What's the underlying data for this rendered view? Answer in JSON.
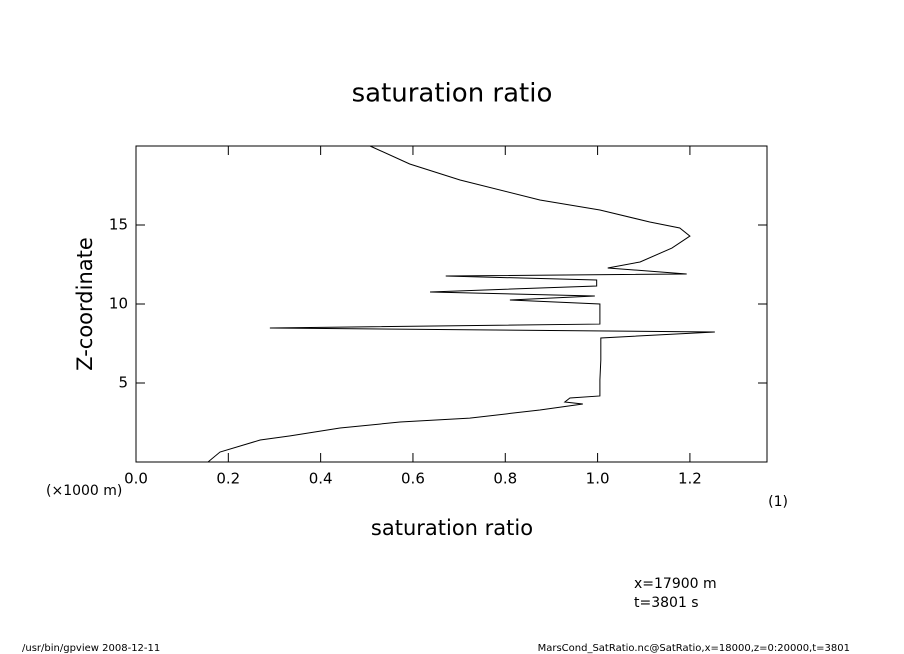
{
  "chart_data": {
    "type": "line",
    "title": "saturation ratio",
    "x_label": "saturation ratio",
    "y_label": "Z-coordinate",
    "y_unit": "(×1000 m)",
    "x_unit": "(1)",
    "annotations": [
      "x=17900  m",
      "t=3801  s"
    ],
    "footer_left": "/usr/bin/gpview   2008-12-11",
    "footer_right": "MarsCond_SatRatio.nc@SatRatio,x=18000,z=0:20000,t=3801",
    "xlim": [
      0,
      1.367
    ],
    "ylim": [
      0,
      20
    ],
    "xticks": [
      {
        "value": 0,
        "label": "0.0"
      },
      0.2,
      0.4,
      0.6,
      0.8,
      {
        "value": 1,
        "label": "1.0"
      },
      1.2
    ],
    "yticks": [
      5,
      10,
      15
    ],
    "series": [
      {
        "color": "#000000",
        "x": [
          0.156,
          0.182,
          0.269,
          0.334,
          0.442,
          0.572,
          0.723,
          0.875,
          0.968,
          0.929,
          0.94,
          1.005,
          1.005,
          1.007,
          1.007,
          1.254,
          0.29,
          1.005,
          1.005,
          0.81,
          0.994,
          0.637,
          0.998,
          0.998,
          0.671,
          1.193,
          1.022,
          1.092,
          1.161,
          1.2,
          1.178,
          1.113,
          1.005,
          0.875,
          0.702,
          0.593,
          0.507
        ],
        "values": [
          0,
          0.63,
          1.39,
          1.65,
          2.15,
          2.53,
          2.78,
          3.29,
          3.67,
          3.8,
          4.05,
          4.18,
          5.19,
          6.46,
          7.85,
          8.23,
          8.48,
          8.73,
          10.0,
          10.25,
          10.51,
          10.76,
          11.14,
          11.52,
          11.77,
          11.9,
          12.28,
          12.66,
          13.54,
          14.3,
          14.81,
          15.19,
          15.95,
          16.58,
          17.85,
          18.86,
          20.0
        ]
      }
    ]
  }
}
